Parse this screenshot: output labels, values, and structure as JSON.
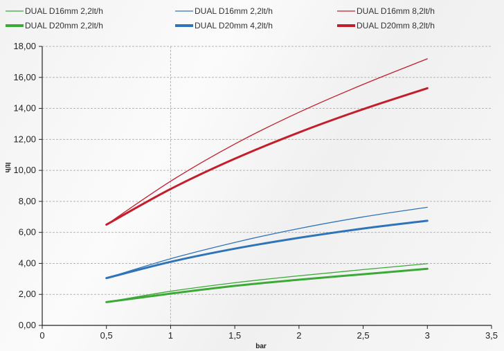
{
  "chart_data": {
    "type": "line",
    "xlabel": "bar",
    "ylabel": "lt/h",
    "xlim": [
      0,
      3.5
    ],
    "ylim": [
      0,
      18
    ],
    "x_ticks": [
      "0",
      "0,5",
      "1",
      "1,5",
      "2",
      "2,5",
      "3",
      "3,5"
    ],
    "y_ticks": [
      "0,00",
      "2,00",
      "4,00",
      "6,00",
      "8,00",
      "10,00",
      "12,00",
      "14,00",
      "16,00",
      "18,00"
    ],
    "grid": true,
    "legend_position": "top",
    "x": [
      0.5,
      1,
      1.5,
      2,
      2.5,
      3
    ],
    "series": [
      {
        "name": "DUAL D16mm 2,2lt/h",
        "color": "#3aa935",
        "weight": "thin",
        "values": [
          1.5,
          2.2,
          2.75,
          3.2,
          3.6,
          3.98
        ]
      },
      {
        "name": "DUAL D20mm 2,2lt/h",
        "color": "#3aa935",
        "weight": "thick",
        "values": [
          1.5,
          2.05,
          2.55,
          2.95,
          3.3,
          3.65
        ]
      },
      {
        "name": "DUAL  D16mm 2,2lt/h",
        "color": "#2f73b8",
        "weight": "thin",
        "values": [
          3.05,
          4.3,
          5.35,
          6.25,
          7.0,
          7.62
        ]
      },
      {
        "name": "DUAL  D20mm 4,2lt/h",
        "color": "#2f73b8",
        "weight": "thick",
        "values": [
          3.05,
          4.1,
          4.95,
          5.65,
          6.25,
          6.75
        ]
      },
      {
        "name": "DUAL  D16mm 8,2lt/h",
        "color": "#c41e2c",
        "weight": "thin",
        "values": [
          6.5,
          9.3,
          11.7,
          13.75,
          15.55,
          17.2
        ]
      },
      {
        "name": "DUAL  D20mm 8,2lt/h",
        "color": "#c41e2c",
        "weight": "thick",
        "values": [
          6.5,
          8.8,
          10.75,
          12.45,
          13.95,
          15.3
        ]
      }
    ],
    "annotations": [
      {
        "type": "vertical-dashed-line",
        "x": 1
      }
    ]
  }
}
